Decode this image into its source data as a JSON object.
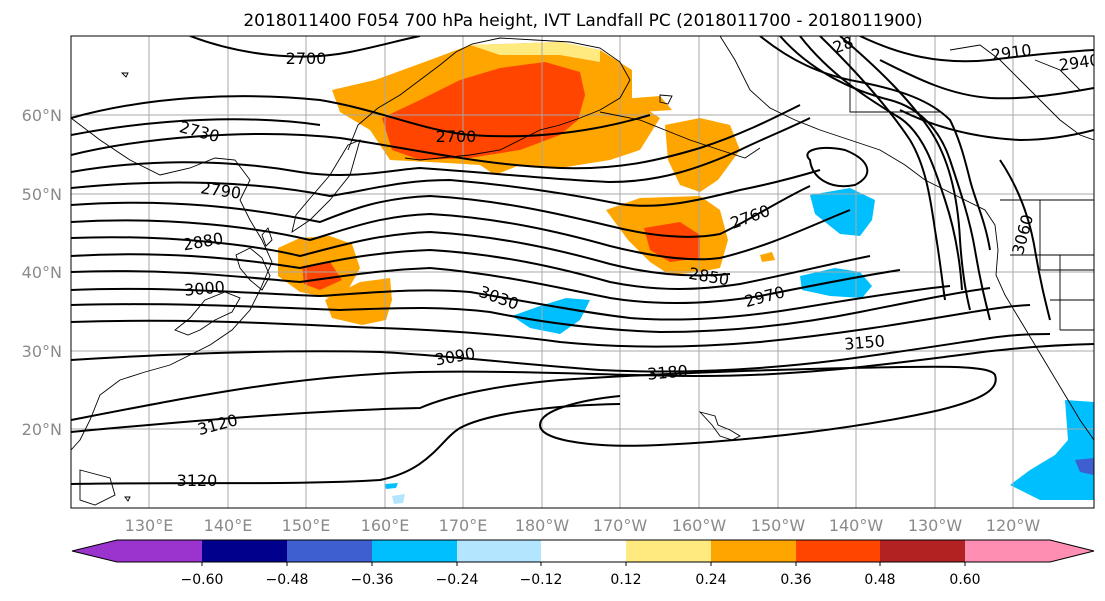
{
  "title": "2018011400 F054 700 hPa height, IVT Landfall PC (2018011700 - 2018011900)",
  "lat_ticks": [
    "60°N",
    "50°N",
    "40°N",
    "30°N",
    "20°N"
  ],
  "lon_ticks": [
    "130°E",
    "140°E",
    "150°E",
    "160°E",
    "170°E",
    "180°W",
    "170°W",
    "160°W",
    "150°W",
    "140°W",
    "130°W",
    "120°W"
  ],
  "contour_labels": [
    "2700",
    "2730",
    "2790",
    "2880",
    "3000",
    "2700",
    "3030",
    "3090",
    "3120",
    "3120",
    "3180",
    "2850",
    "2760",
    "2970",
    "3150",
    "3060",
    "2910",
    "2940",
    "28"
  ],
  "colorbar": {
    "colors": [
      "#9b34cf",
      "#00008c",
      "#3e5fcf",
      "#00bfff",
      "#b3e5ff",
      "#ffffff",
      "#ffea80",
      "#ffa500",
      "#ff4500",
      "#b22222",
      "#ff8eb3"
    ],
    "ticks": [
      "−0.60",
      "−0.48",
      "−0.36",
      "−0.24",
      "−0.12",
      "0.12",
      "0.24",
      "0.36",
      "0.48",
      "0.60"
    ]
  }
}
